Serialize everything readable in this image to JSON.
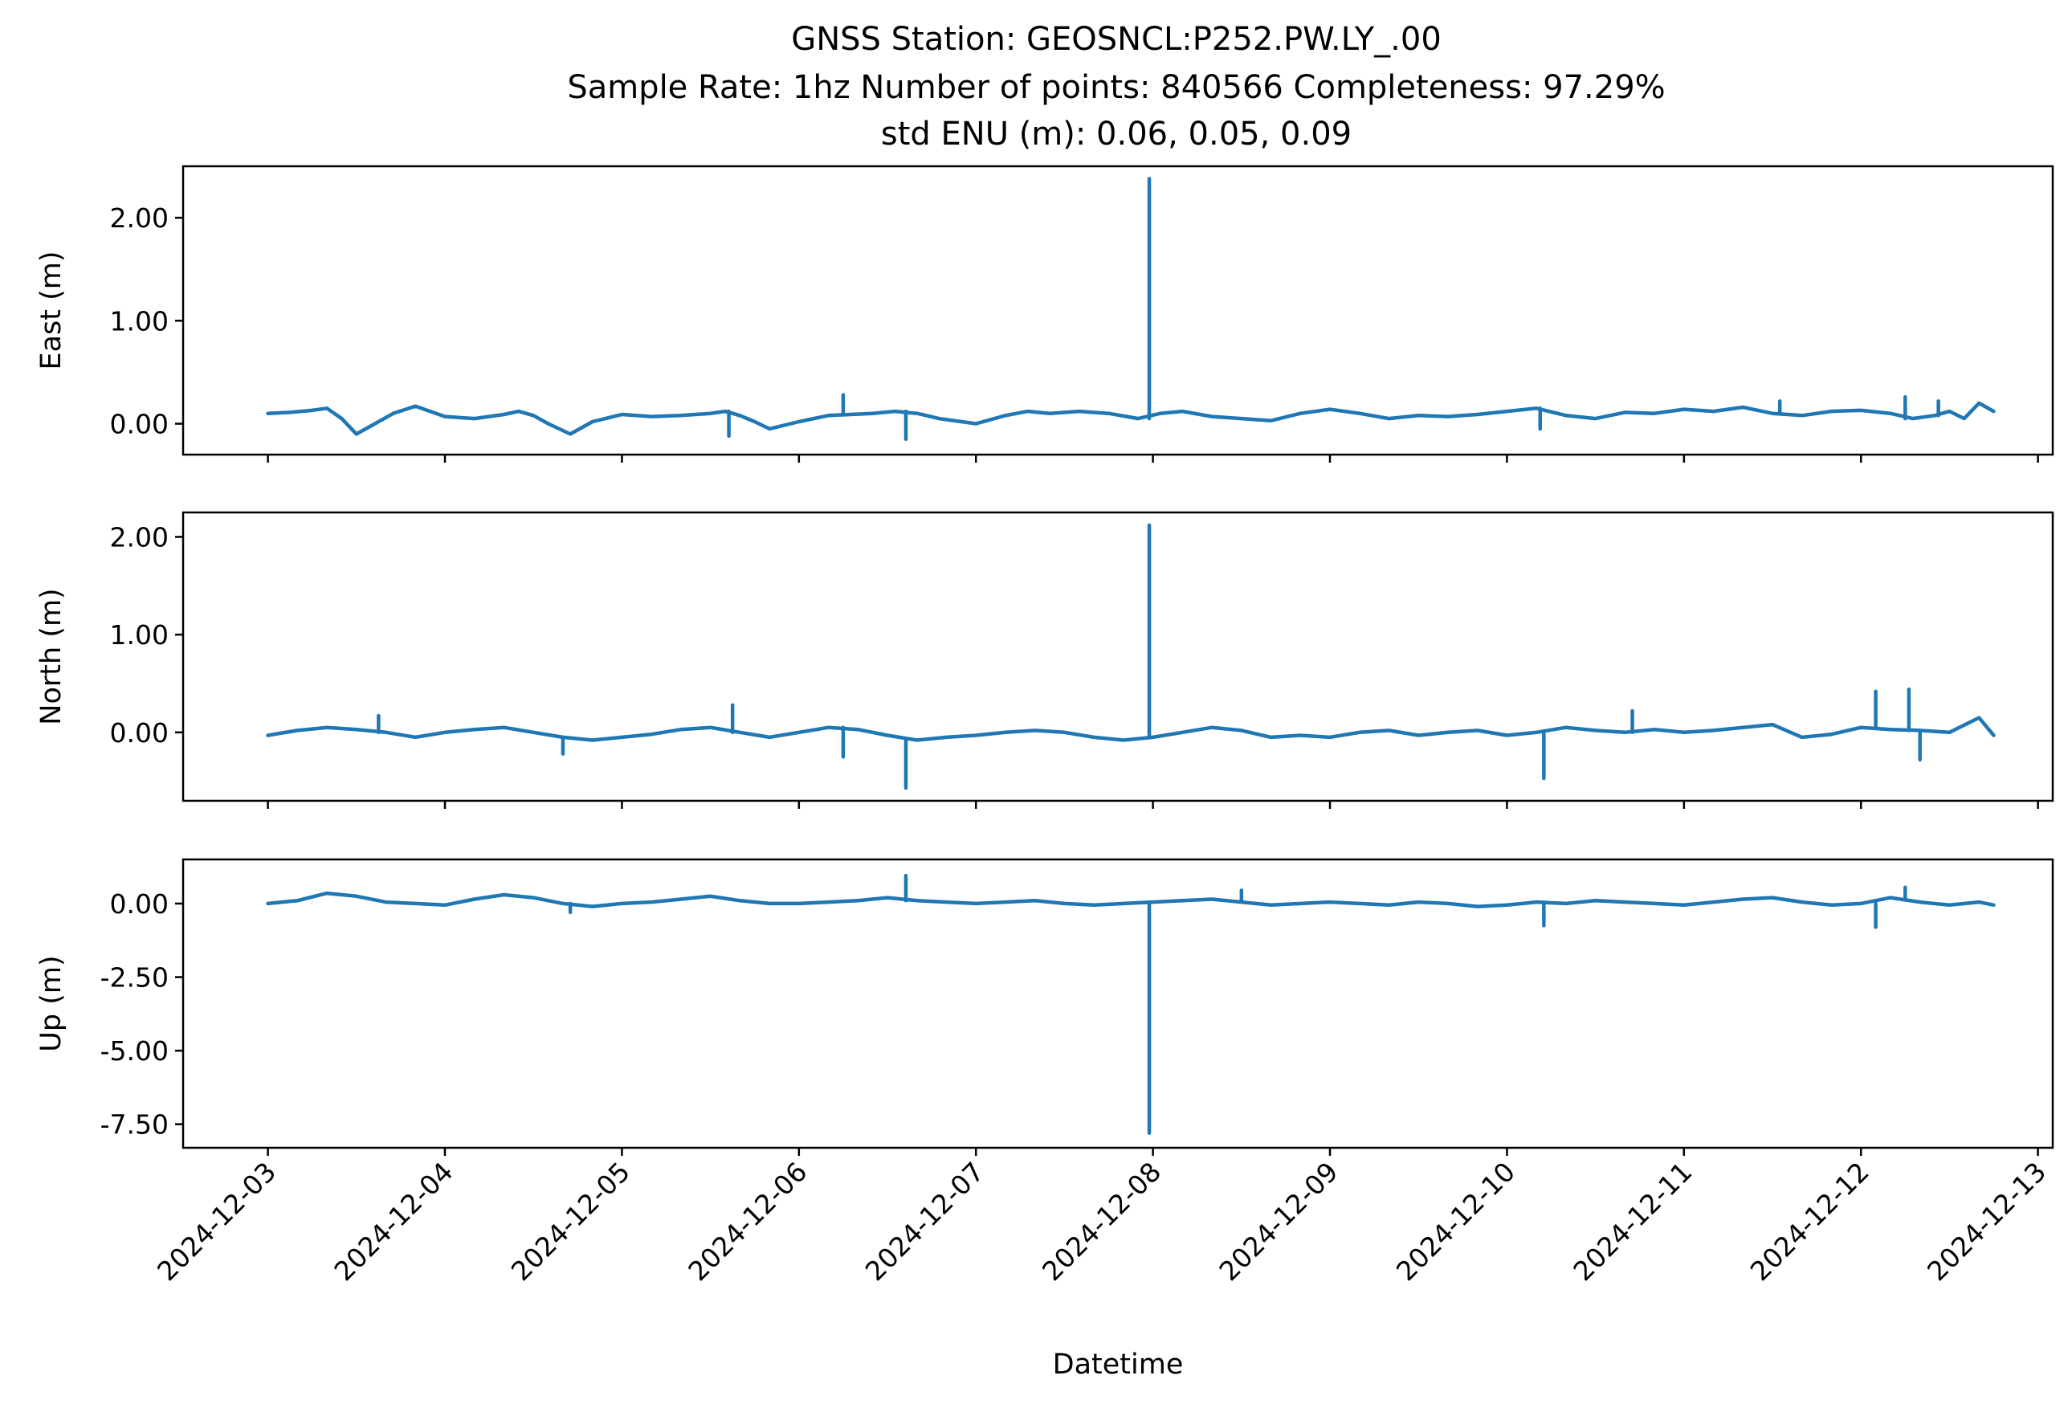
{
  "title": {
    "line1": "GNSS Station: GEOSNCL:P252.PW.LY_.00",
    "line2": "Sample Rate: 1hz   Number of points: 840566    Completeness:  97.29%",
    "line3": "std ENU (m):  0.06, 0.05, 0.09"
  },
  "colors": {
    "series": "#1f77b4",
    "axes": "#000000",
    "background": "#ffffff"
  },
  "chart_data": [
    {
      "type": "line",
      "ylabel": "East (m)",
      "xlabel": "",
      "xlim": [
        "2024-12-02T12:30",
        "2024-12-13T02:00"
      ],
      "ylim": [
        -0.3,
        2.5
      ],
      "yticks": [
        0.0,
        1.0,
        2.0
      ],
      "ytick_labels": [
        "0.00",
        "1.00",
        "2.00"
      ],
      "show_xtick_labels": false,
      "grid": false,
      "series": [
        {
          "x": [
            "2024-12-03T00:00",
            "2024-12-03T03:00",
            "2024-12-03T06:00",
            "2024-12-03T08:00",
            "2024-12-03T10:00",
            "2024-12-03T12:00",
            "2024-12-03T14:00",
            "2024-12-03T17:00",
            "2024-12-03T20:00",
            "2024-12-04T00:00",
            "2024-12-04T04:00",
            "2024-12-04T08:00",
            "2024-12-04T10:00",
            "2024-12-04T12:00",
            "2024-12-04T14:00",
            "2024-12-04T17:00",
            "2024-12-04T20:00",
            "2024-12-05T00:00",
            "2024-12-05T04:00",
            "2024-12-05T08:00",
            "2024-12-05T12:00",
            "2024-12-05T14:00",
            "2024-12-05T16:00",
            "2024-12-05T18:00",
            "2024-12-05T20:00",
            "2024-12-06T00:00",
            "2024-12-06T04:00",
            "2024-12-06T07:00",
            "2024-12-06T10:00",
            "2024-12-06T13:00",
            "2024-12-06T16:00",
            "2024-12-06T19:00",
            "2024-12-07T00:00",
            "2024-12-07T04:00",
            "2024-12-07T07:00",
            "2024-12-07T10:00",
            "2024-12-07T14:00",
            "2024-12-07T18:00",
            "2024-12-07T22:00",
            "2024-12-08T01:00",
            "2024-12-08T04:00",
            "2024-12-08T08:00",
            "2024-12-08T12:00",
            "2024-12-08T16:00",
            "2024-12-08T20:00",
            "2024-12-09T00:00",
            "2024-12-09T04:00",
            "2024-12-09T08:00",
            "2024-12-09T12:00",
            "2024-12-09T16:00",
            "2024-12-09T20:00",
            "2024-12-10T00:00",
            "2024-12-10T04:00",
            "2024-12-10T08:00",
            "2024-12-10T12:00",
            "2024-12-10T16:00",
            "2024-12-10T20:00",
            "2024-12-11T00:00",
            "2024-12-11T04:00",
            "2024-12-11T08:00",
            "2024-12-11T12:00",
            "2024-12-11T16:00",
            "2024-12-11T20:00",
            "2024-12-12T00:00",
            "2024-12-12T04:00",
            "2024-12-12T07:00",
            "2024-12-12T10:00",
            "2024-12-12T12:00",
            "2024-12-12T14:00",
            "2024-12-12T16:00",
            "2024-12-12T18:00"
          ],
          "y": [
            0.1,
            0.11,
            0.13,
            0.15,
            0.05,
            -0.1,
            -0.02,
            0.1,
            0.17,
            0.07,
            0.05,
            0.09,
            0.12,
            0.08,
            0.0,
            -0.1,
            0.02,
            0.09,
            0.07,
            0.08,
            0.1,
            0.12,
            0.08,
            0.02,
            -0.05,
            0.02,
            0.08,
            0.09,
            0.1,
            0.12,
            0.1,
            0.05,
            0.0,
            0.08,
            0.12,
            0.1,
            0.12,
            0.1,
            0.05,
            0.1,
            0.12,
            0.07,
            0.05,
            0.03,
            0.1,
            0.14,
            0.1,
            0.05,
            0.08,
            0.07,
            0.09,
            0.12,
            0.15,
            0.08,
            0.05,
            0.11,
            0.1,
            0.14,
            0.12,
            0.16,
            0.1,
            0.08,
            0.12,
            0.13,
            0.1,
            0.05,
            0.08,
            0.12,
            0.05,
            0.2,
            0.12
          ]
        }
      ],
      "spikes": [
        {
          "x": "2024-12-07T23:30",
          "y": 2.38
        },
        {
          "x": "2024-12-05T14:30",
          "y": -0.12
        },
        {
          "x": "2024-12-06T06:00",
          "y": 0.28
        },
        {
          "x": "2024-12-06T14:30",
          "y": -0.15
        },
        {
          "x": "2024-12-10T04:30",
          "y": -0.05
        },
        {
          "x": "2024-12-11T13:00",
          "y": 0.22
        },
        {
          "x": "2024-12-12T06:00",
          "y": 0.26
        },
        {
          "x": "2024-12-12T10:30",
          "y": 0.22
        }
      ]
    },
    {
      "type": "line",
      "ylabel": "North (m)",
      "xlabel": "",
      "xlim": [
        "2024-12-02T12:30",
        "2024-12-13T02:00"
      ],
      "ylim": [
        -0.7,
        2.25
      ],
      "yticks": [
        0.0,
        1.0,
        2.0
      ],
      "ytick_labels": [
        "0.00",
        "1.00",
        "2.00"
      ],
      "show_xtick_labels": false,
      "grid": false,
      "series": [
        {
          "x": [
            "2024-12-03T00:00",
            "2024-12-03T04:00",
            "2024-12-03T08:00",
            "2024-12-03T12:00",
            "2024-12-03T16:00",
            "2024-12-03T20:00",
            "2024-12-04T00:00",
            "2024-12-04T04:00",
            "2024-12-04T08:00",
            "2024-12-04T12:00",
            "2024-12-04T16:00",
            "2024-12-04T20:00",
            "2024-12-05T00:00",
            "2024-12-05T04:00",
            "2024-12-05T08:00",
            "2024-12-05T12:00",
            "2024-12-05T16:00",
            "2024-12-05T20:00",
            "2024-12-06T00:00",
            "2024-12-06T04:00",
            "2024-12-06T08:00",
            "2024-12-06T12:00",
            "2024-12-06T16:00",
            "2024-12-06T20:00",
            "2024-12-07T00:00",
            "2024-12-07T04:00",
            "2024-12-07T08:00",
            "2024-12-07T12:00",
            "2024-12-07T16:00",
            "2024-12-07T20:00",
            "2024-12-08T00:00",
            "2024-12-08T04:00",
            "2024-12-08T08:00",
            "2024-12-08T12:00",
            "2024-12-08T16:00",
            "2024-12-08T20:00",
            "2024-12-09T00:00",
            "2024-12-09T04:00",
            "2024-12-09T08:00",
            "2024-12-09T12:00",
            "2024-12-09T16:00",
            "2024-12-09T20:00",
            "2024-12-10T00:00",
            "2024-12-10T04:00",
            "2024-12-10T08:00",
            "2024-12-10T12:00",
            "2024-12-10T16:00",
            "2024-12-10T20:00",
            "2024-12-11T00:00",
            "2024-12-11T04:00",
            "2024-12-11T08:00",
            "2024-12-11T12:00",
            "2024-12-11T16:00",
            "2024-12-11T20:00",
            "2024-12-12T00:00",
            "2024-12-12T04:00",
            "2024-12-12T08:00",
            "2024-12-12T12:00",
            "2024-12-12T16:00",
            "2024-12-12T18:00"
          ],
          "y": [
            -0.03,
            0.02,
            0.05,
            0.03,
            0.0,
            -0.05,
            0.0,
            0.03,
            0.05,
            0.0,
            -0.05,
            -0.08,
            -0.05,
            -0.02,
            0.03,
            0.05,
            0.0,
            -0.05,
            0.0,
            0.05,
            0.03,
            -0.03,
            -0.08,
            -0.05,
            -0.03,
            0.0,
            0.02,
            0.0,
            -0.05,
            -0.08,
            -0.05,
            0.0,
            0.05,
            0.02,
            -0.05,
            -0.03,
            -0.05,
            0.0,
            0.02,
            -0.03,
            0.0,
            0.02,
            -0.03,
            0.0,
            0.05,
            0.02,
            0.0,
            0.03,
            0.0,
            0.02,
            0.05,
            0.08,
            -0.05,
            -0.02,
            0.05,
            0.03,
            0.02,
            0.0,
            0.15,
            -0.03
          ]
        }
      ],
      "spikes": [
        {
          "x": "2024-12-07T23:30",
          "y": 2.12
        },
        {
          "x": "2024-12-06T14:30",
          "y": -0.57
        },
        {
          "x": "2024-12-06T06:00",
          "y": -0.25
        },
        {
          "x": "2024-12-05T15:00",
          "y": 0.28
        },
        {
          "x": "2024-12-10T05:00",
          "y": -0.47
        },
        {
          "x": "2024-12-10T17:00",
          "y": 0.22
        },
        {
          "x": "2024-12-12T02:00",
          "y": 0.42
        },
        {
          "x": "2024-12-12T06:30",
          "y": 0.44
        },
        {
          "x": "2024-12-12T08:00",
          "y": -0.28
        },
        {
          "x": "2024-12-04T16:00",
          "y": -0.22
        },
        {
          "x": "2024-12-03T15:00",
          "y": 0.17
        }
      ]
    },
    {
      "type": "line",
      "ylabel": "Up (m)",
      "xlabel": "Datetime",
      "xlim": [
        "2024-12-02T12:30",
        "2024-12-13T02:00"
      ],
      "ylim": [
        -8.3,
        1.5
      ],
      "yticks": [
        0.0,
        -2.5,
        -5.0,
        -7.5
      ],
      "ytick_labels": [
        "0.00",
        "-2.50",
        "-5.00",
        "-7.50"
      ],
      "show_xtick_labels": true,
      "xticks": [
        "2024-12-03",
        "2024-12-04",
        "2024-12-05",
        "2024-12-06",
        "2024-12-07",
        "2024-12-08",
        "2024-12-09",
        "2024-12-10",
        "2024-12-11",
        "2024-12-12",
        "2024-12-13"
      ],
      "grid": false,
      "series": [
        {
          "x": [
            "2024-12-03T00:00",
            "2024-12-03T04:00",
            "2024-12-03T08:00",
            "2024-12-03T12:00",
            "2024-12-03T16:00",
            "2024-12-03T20:00",
            "2024-12-04T00:00",
            "2024-12-04T04:00",
            "2024-12-04T08:00",
            "2024-12-04T12:00",
            "2024-12-04T16:00",
            "2024-12-04T20:00",
            "2024-12-05T00:00",
            "2024-12-05T04:00",
            "2024-12-05T08:00",
            "2024-12-05T12:00",
            "2024-12-05T16:00",
            "2024-12-05T20:00",
            "2024-12-06T00:00",
            "2024-12-06T04:00",
            "2024-12-06T08:00",
            "2024-12-06T12:00",
            "2024-12-06T16:00",
            "2024-12-06T20:00",
            "2024-12-07T00:00",
            "2024-12-07T04:00",
            "2024-12-07T08:00",
            "2024-12-07T12:00",
            "2024-12-07T16:00",
            "2024-12-07T20:00",
            "2024-12-08T00:00",
            "2024-12-08T04:00",
            "2024-12-08T08:00",
            "2024-12-08T12:00",
            "2024-12-08T16:00",
            "2024-12-08T20:00",
            "2024-12-09T00:00",
            "2024-12-09T04:00",
            "2024-12-09T08:00",
            "2024-12-09T12:00",
            "2024-12-09T16:00",
            "2024-12-09T20:00",
            "2024-12-10T00:00",
            "2024-12-10T04:00",
            "2024-12-10T08:00",
            "2024-12-10T12:00",
            "2024-12-10T16:00",
            "2024-12-10T20:00",
            "2024-12-11T00:00",
            "2024-12-11T04:00",
            "2024-12-11T08:00",
            "2024-12-11T12:00",
            "2024-12-11T16:00",
            "2024-12-11T20:00",
            "2024-12-12T00:00",
            "2024-12-12T04:00",
            "2024-12-12T08:00",
            "2024-12-12T12:00",
            "2024-12-12T16:00",
            "2024-12-12T18:00"
          ],
          "y": [
            0.0,
            0.1,
            0.35,
            0.25,
            0.05,
            0.0,
            -0.05,
            0.15,
            0.3,
            0.2,
            0.0,
            -0.1,
            0.0,
            0.05,
            0.15,
            0.25,
            0.1,
            0.0,
            0.0,
            0.05,
            0.1,
            0.2,
            0.1,
            0.05,
            0.0,
            0.05,
            0.1,
            0.0,
            -0.05,
            0.0,
            0.05,
            0.1,
            0.15,
            0.05,
            -0.05,
            0.0,
            0.05,
            0.0,
            -0.05,
            0.05,
            0.0,
            -0.1,
            -0.05,
            0.05,
            0.0,
            0.1,
            0.05,
            0.0,
            -0.05,
            0.05,
            0.15,
            0.2,
            0.05,
            -0.05,
            0.0,
            0.2,
            0.05,
            -0.05,
            0.05,
            -0.05
          ]
        }
      ],
      "spikes": [
        {
          "x": "2024-12-07T23:30",
          "y": -7.8
        },
        {
          "x": "2024-12-06T14:30",
          "y": 0.95
        },
        {
          "x": "2024-12-10T05:00",
          "y": -0.75
        },
        {
          "x": "2024-12-12T02:00",
          "y": -0.8
        },
        {
          "x": "2024-12-12T06:00",
          "y": 0.55
        },
        {
          "x": "2024-12-08T12:00",
          "y": 0.45
        },
        {
          "x": "2024-12-04T17:00",
          "y": -0.3
        }
      ]
    }
  ]
}
